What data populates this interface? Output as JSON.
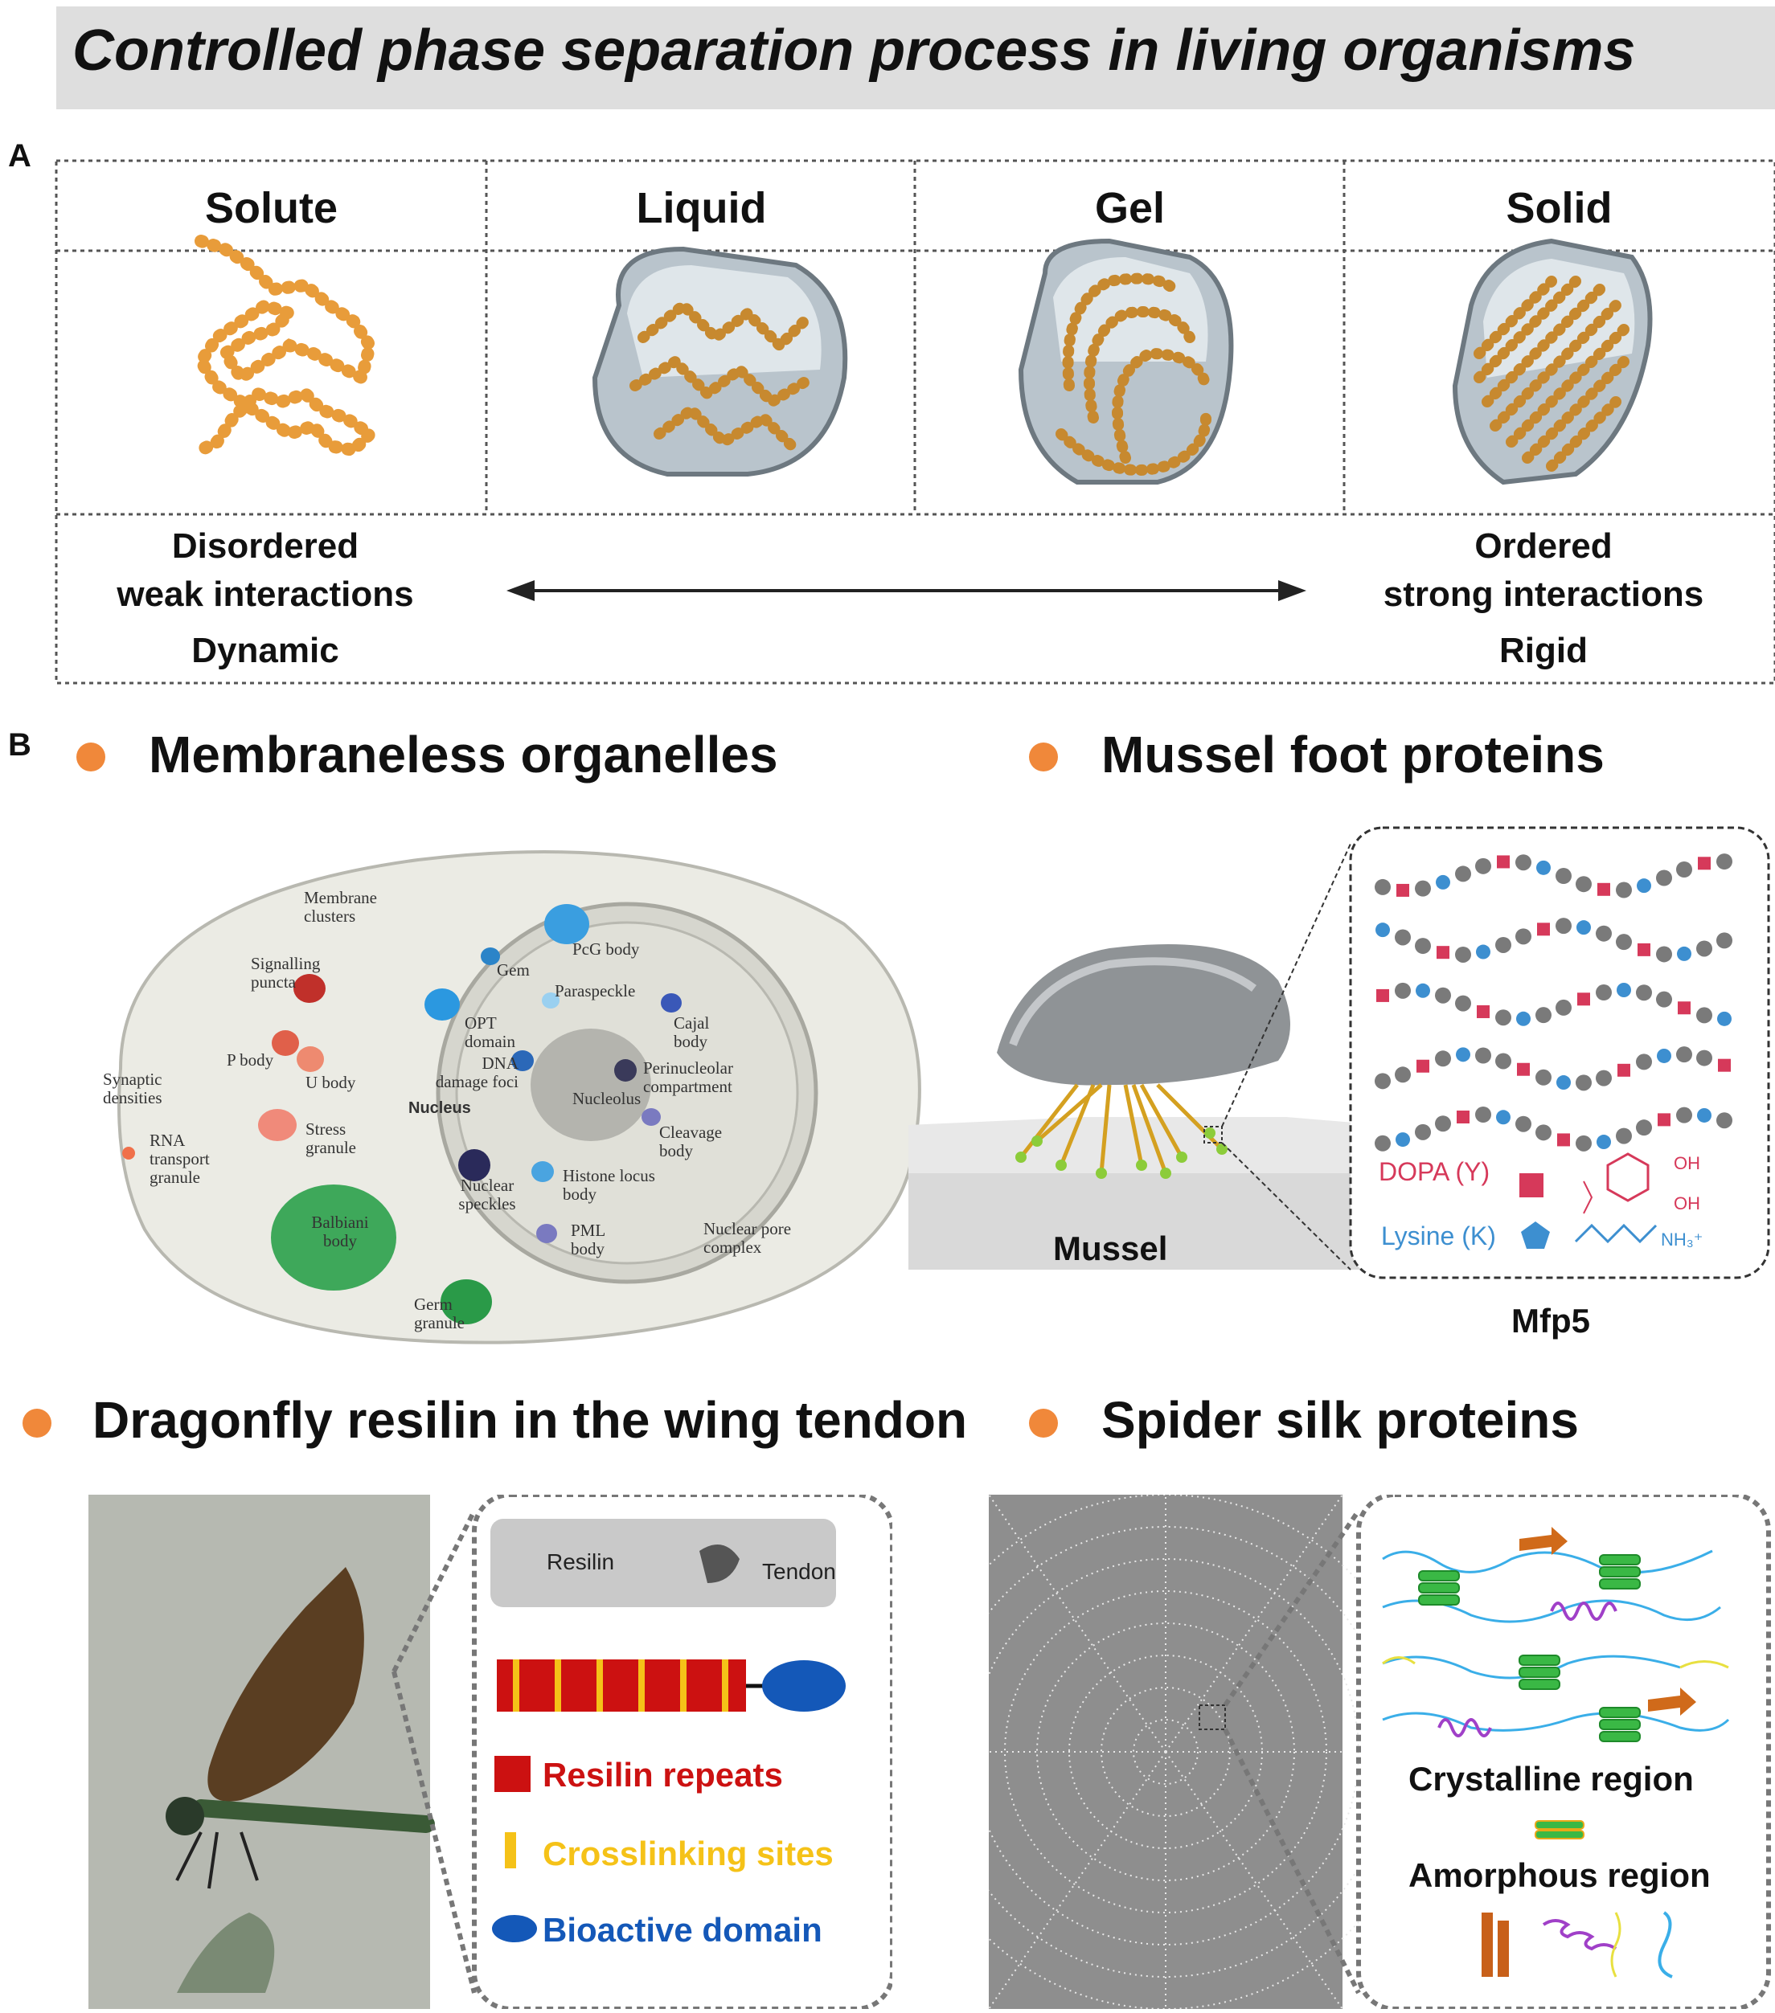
{
  "title": "Controlled phase separation process in living organisms",
  "panel_a": {
    "letter": "A",
    "columns": [
      "Solute",
      "Liquid",
      "Gel",
      "Solid"
    ],
    "left_props": {
      "line1": "Disordered",
      "line2": "weak interactions",
      "line3": "Dynamic"
    },
    "right_props": {
      "line1": "Ordered",
      "line2": "strong interactions",
      "line3": "Rigid"
    }
  },
  "panel_b": {
    "letter": "B",
    "organelles": {
      "heading": "Membraneless organelles",
      "labels": {
        "membrane_clusters": "Membrane clusters",
        "signalling_puncta": "Signalling puncta",
        "p_body": "P body",
        "u_body": "U body",
        "synaptic_densities": "Synaptic densities",
        "stress_granule": "Stress granule",
        "rna_transport_granule": "RNA transport granule",
        "balbiani_body": "Balbiani body",
        "germ_granule": "Germ granule",
        "gem": "Gem",
        "pcg_body": "PcG body",
        "paraspeckle": "Paraspeckle",
        "opt_domain": "OPT domain",
        "cajal_body": "Cajal body",
        "dna_damage_foci": "DNA damage foci",
        "nucleus": "Nucleus",
        "nucleolus": "Nucleolus",
        "perinucleolar": "Perinucleolar compartment",
        "cleavage_body": "Cleavage body",
        "nuclear_speckles": "Nuclear speckles",
        "histone_locus_body": "Histone locus body",
        "pml_body": "PML body",
        "nuclear_pore_complex": "Nuclear pore complex"
      }
    },
    "mussel": {
      "heading": "Mussel foot proteins",
      "mussel_label": "Mussel",
      "protein_label": "Mfp5",
      "dopa": "DOPA (Y)",
      "lysine": "Lysine (K)",
      "oh": "OH",
      "nh3": "NH₃⁺",
      "colors": {
        "dopa": "#d6395a",
        "lysine": "#3d8fd0",
        "other": "#7a7a7a"
      }
    },
    "dragonfly": {
      "heading": "Dragonfly resilin in the wing tendon",
      "resilin_img_label": "Resilin",
      "tendon_img_label": "Tendon",
      "legend": {
        "repeats": "Resilin repeats",
        "crosslinking": "Crosslinking sites",
        "bioactive": "Bioactive domain"
      },
      "colors": {
        "repeats": "#cc1111",
        "crosslinking": "#f5c218",
        "bioactive": "#1458b8"
      }
    },
    "spider": {
      "heading": "Spider silk proteins",
      "crystalline": "Crystalline region",
      "amorphous": "Amorphous region"
    }
  }
}
